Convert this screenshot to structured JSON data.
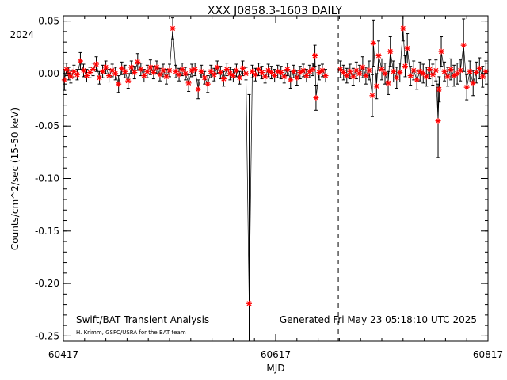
{
  "chart_data": {
    "type": "scatter",
    "title": "XXX J0858.3-1603 DAILY",
    "xlabel": "MJD",
    "ylabel": "Counts/cm^2/sec (15-50 keV)",
    "xlim": [
      60417,
      60817
    ],
    "ylim": [
      -0.255,
      0.055
    ],
    "x_ticks": [
      60417,
      60617,
      60817
    ],
    "x_tick_labels": [
      "60417",
      "60617",
      "60817"
    ],
    "y_ticks": [
      0.05,
      0.0,
      -0.05,
      -0.1,
      -0.15,
      -0.2,
      -0.25
    ],
    "y_tick_labels": [
      "0.05",
      "0.00",
      "-0.05",
      "-0.10",
      "-0.15",
      "-0.20",
      "-0.25"
    ],
    "year_marker": {
      "label": "2024"
    },
    "dashed_line_x": 60676,
    "grid": false,
    "marker_color": "#ff0000",
    "errorbar_color": "#000000",
    "annotations": {
      "left_main": "Swift/BAT Transient Analysis",
      "left_sub": "H. Krimm, GSFC/USRA for the BAT team",
      "right": "Generated Fri May 23 05:18:10 UTC 2025"
    },
    "series": [
      {
        "points": [
          {
            "x": 60418,
            "y": -0.006,
            "e": 0.01
          },
          {
            "x": 60420,
            "y": 0.004,
            "e": 0.006
          },
          {
            "x": 60422,
            "y": 0.0,
            "e": 0.006
          },
          {
            "x": 60424,
            "y": -0.003,
            "e": 0.006
          },
          {
            "x": 60427,
            "y": 0.002,
            "e": 0.006
          },
          {
            "x": 60430,
            "y": -0.001,
            "e": 0.005
          },
          {
            "x": 60433,
            "y": 0.012,
            "e": 0.008
          },
          {
            "x": 60436,
            "y": 0.003,
            "e": 0.006
          },
          {
            "x": 60439,
            "y": -0.002,
            "e": 0.006
          },
          {
            "x": 60442,
            "y": 0.001,
            "e": 0.005
          },
          {
            "x": 60445,
            "y": 0.004,
            "e": 0.006
          },
          {
            "x": 60448,
            "y": 0.009,
            "e": 0.007
          },
          {
            "x": 60451,
            "y": -0.004,
            "e": 0.006
          },
          {
            "x": 60454,
            "y": 0.002,
            "e": 0.006
          },
          {
            "x": 60457,
            "y": 0.006,
            "e": 0.006
          },
          {
            "x": 60460,
            "y": -0.002,
            "e": 0.006
          },
          {
            "x": 60463,
            "y": 0.003,
            "e": 0.006
          },
          {
            "x": 60466,
            "y": 0.0,
            "e": 0.006
          },
          {
            "x": 60469,
            "y": -0.01,
            "e": 0.008
          },
          {
            "x": 60472,
            "y": 0.005,
            "e": 0.006
          },
          {
            "x": 60475,
            "y": 0.002,
            "e": 0.006
          },
          {
            "x": 60478,
            "y": -0.007,
            "e": 0.007
          },
          {
            "x": 60481,
            "y": 0.006,
            "e": 0.006
          },
          {
            "x": 60484,
            "y": 0.001,
            "e": 0.006
          },
          {
            "x": 60487,
            "y": 0.011,
            "e": 0.008
          },
          {
            "x": 60490,
            "y": 0.004,
            "e": 0.006
          },
          {
            "x": 60493,
            "y": -0.002,
            "e": 0.006
          },
          {
            "x": 60496,
            "y": 0.002,
            "e": 0.006
          },
          {
            "x": 60499,
            "y": 0.006,
            "e": 0.007
          },
          {
            "x": 60502,
            "y": 0.001,
            "e": 0.006
          },
          {
            "x": 60505,
            "y": 0.006,
            "e": 0.006
          },
          {
            "x": 60508,
            "y": -0.001,
            "e": 0.006
          },
          {
            "x": 60511,
            "y": 0.003,
            "e": 0.006
          },
          {
            "x": 60514,
            "y": -0.003,
            "e": 0.007
          },
          {
            "x": 60517,
            "y": 0.003,
            "e": 0.006
          },
          {
            "x": 60520,
            "y": 0.043,
            "e": 0.01
          },
          {
            "x": 60523,
            "y": 0.002,
            "e": 0.006
          },
          {
            "x": 60526,
            "y": -0.001,
            "e": 0.006
          },
          {
            "x": 60529,
            "y": 0.004,
            "e": 0.006
          },
          {
            "x": 60532,
            "y": 0.0,
            "e": 0.006
          },
          {
            "x": 60535,
            "y": -0.009,
            "e": 0.008
          },
          {
            "x": 60538,
            "y": 0.003,
            "e": 0.006
          },
          {
            "x": 60541,
            "y": 0.004,
            "e": 0.006
          },
          {
            "x": 60544,
            "y": -0.015,
            "e": 0.009
          },
          {
            "x": 60547,
            "y": 0.002,
            "e": 0.006
          },
          {
            "x": 60550,
            "y": -0.004,
            "e": 0.006
          },
          {
            "x": 60553,
            "y": -0.01,
            "e": 0.008
          },
          {
            "x": 60556,
            "y": 0.002,
            "e": 0.006
          },
          {
            "x": 60559,
            "y": -0.001,
            "e": 0.006
          },
          {
            "x": 60562,
            "y": 0.006,
            "e": 0.006
          },
          {
            "x": 60565,
            "y": 0.001,
            "e": 0.006
          },
          {
            "x": 60568,
            "y": -0.005,
            "e": 0.007
          },
          {
            "x": 60571,
            "y": 0.004,
            "e": 0.006
          },
          {
            "x": 60574,
            "y": 0.0,
            "e": 0.006
          },
          {
            "x": 60577,
            "y": -0.002,
            "e": 0.006
          },
          {
            "x": 60580,
            "y": 0.003,
            "e": 0.006
          },
          {
            "x": 60583,
            "y": -0.004,
            "e": 0.006
          },
          {
            "x": 60586,
            "y": 0.005,
            "e": 0.007
          },
          {
            "x": 60589,
            "y": 0.0,
            "e": 0.006
          },
          {
            "x": 60592,
            "y": -0.219,
            "e": 0.199
          },
          {
            "x": 60595,
            "y": 0.002,
            "e": 0.006
          },
          {
            "x": 60598,
            "y": -0.001,
            "e": 0.006
          },
          {
            "x": 60601,
            "y": 0.004,
            "e": 0.006
          },
          {
            "x": 60604,
            "y": 0.001,
            "e": 0.006
          },
          {
            "x": 60607,
            "y": -0.003,
            "e": 0.006
          },
          {
            "x": 60610,
            "y": 0.003,
            "e": 0.006
          },
          {
            "x": 60613,
            "y": 0.001,
            "e": 0.006
          },
          {
            "x": 60616,
            "y": -0.002,
            "e": 0.006
          },
          {
            "x": 60619,
            "y": 0.002,
            "e": 0.006
          },
          {
            "x": 60622,
            "y": 0.001,
            "e": 0.006
          },
          {
            "x": 60625,
            "y": -0.003,
            "e": 0.006
          },
          {
            "x": 60628,
            "y": 0.004,
            "e": 0.006
          },
          {
            "x": 60631,
            "y": -0.006,
            "e": 0.008
          },
          {
            "x": 60634,
            "y": 0.002,
            "e": 0.006
          },
          {
            "x": 60637,
            "y": -0.004,
            "e": 0.007
          },
          {
            "x": 60640,
            "y": 0.001,
            "e": 0.006
          },
          {
            "x": 60643,
            "y": 0.003,
            "e": 0.006
          },
          {
            "x": 60646,
            "y": -0.002,
            "e": 0.006
          },
          {
            "x": 60649,
            "y": 0.002,
            "e": 0.006
          },
          {
            "x": 60652,
            "y": 0.004,
            "e": 0.006
          },
          {
            "x": 60654,
            "y": 0.017,
            "e": 0.01
          },
          {
            "x": 60655,
            "y": -0.023,
            "e": 0.012
          },
          {
            "x": 60658,
            "y": 0.001,
            "e": 0.007
          },
          {
            "x": 60661,
            "y": 0.003,
            "e": 0.006
          },
          {
            "x": 60664,
            "y": -0.002,
            "e": 0.006
          }
        ]
      },
      {
        "points": [
          {
            "x": 60678,
            "y": 0.004,
            "e": 0.008
          },
          {
            "x": 60681,
            "y": 0.001,
            "e": 0.007
          },
          {
            "x": 60684,
            "y": -0.002,
            "e": 0.007
          },
          {
            "x": 60687,
            "y": 0.002,
            "e": 0.007
          },
          {
            "x": 60690,
            "y": -0.003,
            "e": 0.008
          },
          {
            "x": 60693,
            "y": 0.003,
            "e": 0.008
          },
          {
            "x": 60696,
            "y": 0.0,
            "e": 0.008
          },
          {
            "x": 60699,
            "y": 0.006,
            "e": 0.01
          },
          {
            "x": 60702,
            "y": -0.002,
            "e": 0.008
          },
          {
            "x": 60705,
            "y": 0.003,
            "e": 0.009
          },
          {
            "x": 60708,
            "y": -0.021,
            "e": 0.02
          },
          {
            "x": 60709,
            "y": 0.029,
            "e": 0.022
          },
          {
            "x": 60712,
            "y": -0.012,
            "e": 0.012
          },
          {
            "x": 60714,
            "y": 0.017,
            "e": 0.014
          },
          {
            "x": 60717,
            "y": 0.004,
            "e": 0.01
          },
          {
            "x": 60720,
            "y": 0.0,
            "e": 0.01
          },
          {
            "x": 60723,
            "y": -0.009,
            "e": 0.011
          },
          {
            "x": 60725,
            "y": 0.021,
            "e": 0.014
          },
          {
            "x": 60728,
            "y": 0.002,
            "e": 0.01
          },
          {
            "x": 60731,
            "y": -0.004,
            "e": 0.01
          },
          {
            "x": 60734,
            "y": 0.001,
            "e": 0.009
          },
          {
            "x": 60737,
            "y": 0.043,
            "e": 0.012
          },
          {
            "x": 60739,
            "y": 0.007,
            "e": 0.01
          },
          {
            "x": 60741,
            "y": 0.024,
            "e": 0.014
          },
          {
            "x": 60744,
            "y": -0.002,
            "e": 0.009
          },
          {
            "x": 60747,
            "y": 0.003,
            "e": 0.009
          },
          {
            "x": 60750,
            "y": -0.006,
            "e": 0.009
          },
          {
            "x": 60753,
            "y": 0.002,
            "e": 0.009
          },
          {
            "x": 60756,
            "y": 0.0,
            "e": 0.009
          },
          {
            "x": 60759,
            "y": -0.003,
            "e": 0.009
          },
          {
            "x": 60762,
            "y": 0.004,
            "e": 0.009
          },
          {
            "x": 60765,
            "y": -0.001,
            "e": 0.01
          },
          {
            "x": 60768,
            "y": 0.003,
            "e": 0.01
          },
          {
            "x": 60770,
            "y": -0.045,
            "e": 0.035
          },
          {
            "x": 60771,
            "y": -0.015,
            "e": 0.012
          },
          {
            "x": 60773,
            "y": 0.021,
            "e": 0.014
          },
          {
            "x": 60776,
            "y": 0.002,
            "e": 0.009
          },
          {
            "x": 60779,
            "y": -0.003,
            "e": 0.009
          },
          {
            "x": 60782,
            "y": 0.004,
            "e": 0.01
          },
          {
            "x": 60785,
            "y": -0.002,
            "e": 0.01
          },
          {
            "x": 60788,
            "y": 0.0,
            "e": 0.01
          },
          {
            "x": 60791,
            "y": 0.003,
            "e": 0.01
          },
          {
            "x": 60794,
            "y": 0.027,
            "e": 0.025
          },
          {
            "x": 60797,
            "y": -0.013,
            "e": 0.012
          },
          {
            "x": 60800,
            "y": 0.002,
            "e": 0.01
          },
          {
            "x": 60803,
            "y": -0.009,
            "e": 0.012
          },
          {
            "x": 60806,
            "y": 0.001,
            "e": 0.01
          },
          {
            "x": 60809,
            "y": 0.005,
            "e": 0.01
          },
          {
            "x": 60812,
            "y": -0.003,
            "e": 0.01
          },
          {
            "x": 60815,
            "y": 0.002,
            "e": 0.01
          }
        ]
      }
    ]
  }
}
